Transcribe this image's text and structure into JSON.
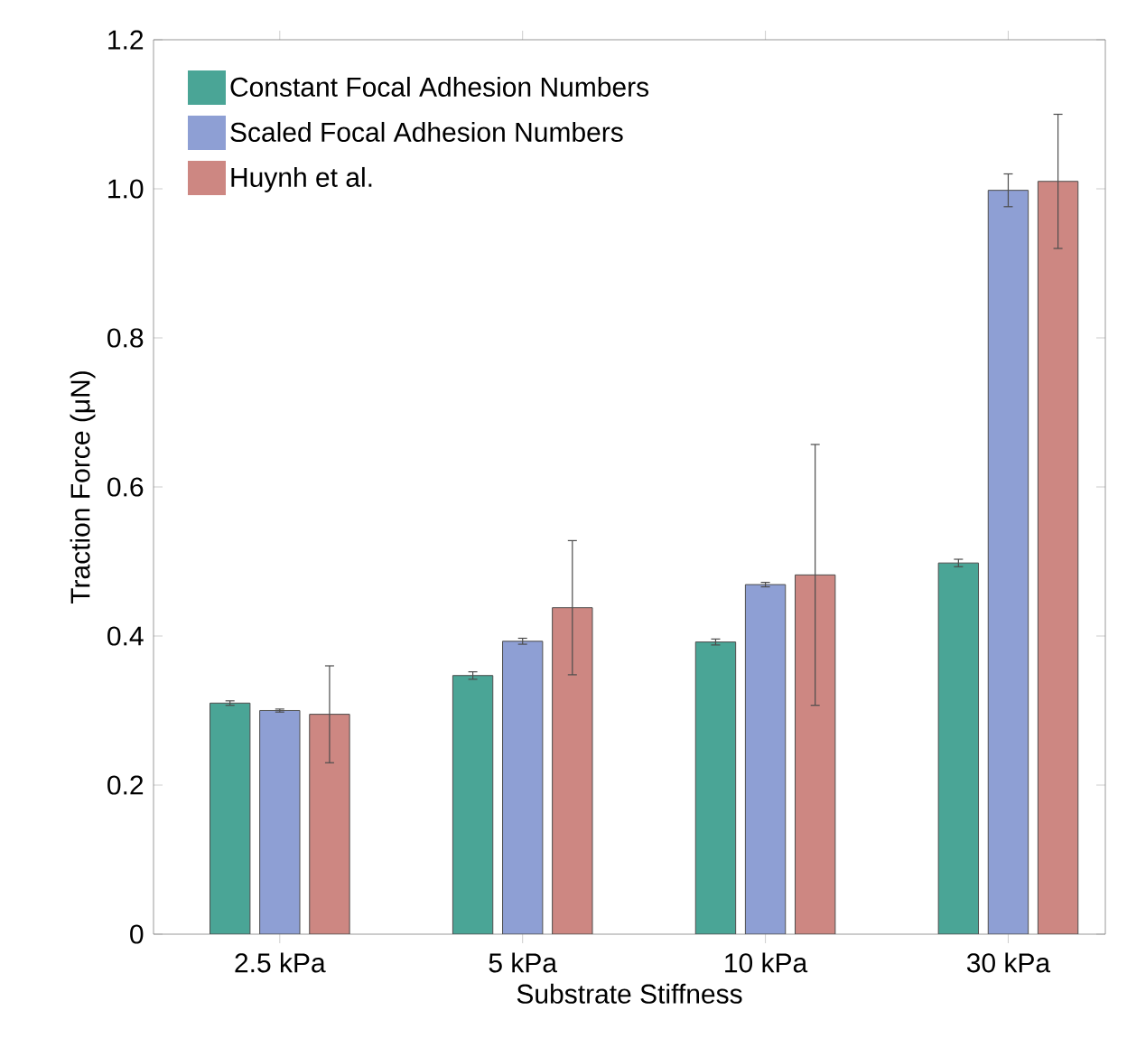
{
  "chart_data": {
    "type": "bar",
    "xlabel": "Substrate Stiffness",
    "ylabel": "Traction Force (μN)",
    "categories": [
      "2.5 kPa",
      "5 kPa",
      "10 kPa",
      "30 kPa"
    ],
    "series": [
      {
        "name": "Constant Focal Adhesion Numbers",
        "color": "#4aa596",
        "values": [
          0.31,
          0.347,
          0.392,
          0.498
        ],
        "errors": [
          0.003,
          0.005,
          0.004,
          0.005
        ]
      },
      {
        "name": "Scaled Focal Adhesion Numbers",
        "color": "#8e9fd4",
        "values": [
          0.3,
          0.393,
          0.469,
          0.998
        ],
        "errors": [
          0.002,
          0.004,
          0.003,
          0.022
        ]
      },
      {
        "name": "Huynh et al.",
        "color": "#cd8782",
        "values": [
          0.295,
          0.438,
          0.482,
          1.01
        ],
        "errors": [
          [
            0.23,
            0.36
          ],
          [
            0.348,
            0.528
          ],
          [
            0.307,
            0.657
          ],
          [
            0.92,
            1.1
          ]
        ]
      }
    ],
    "ylim": [
      0,
      1.2
    ],
    "yticks": [
      0,
      0.2,
      0.4,
      0.6,
      0.8,
      {
        "value": 1.0,
        "label": "1.0"
      },
      1.2
    ],
    "grid": false,
    "legend": "top left"
  }
}
